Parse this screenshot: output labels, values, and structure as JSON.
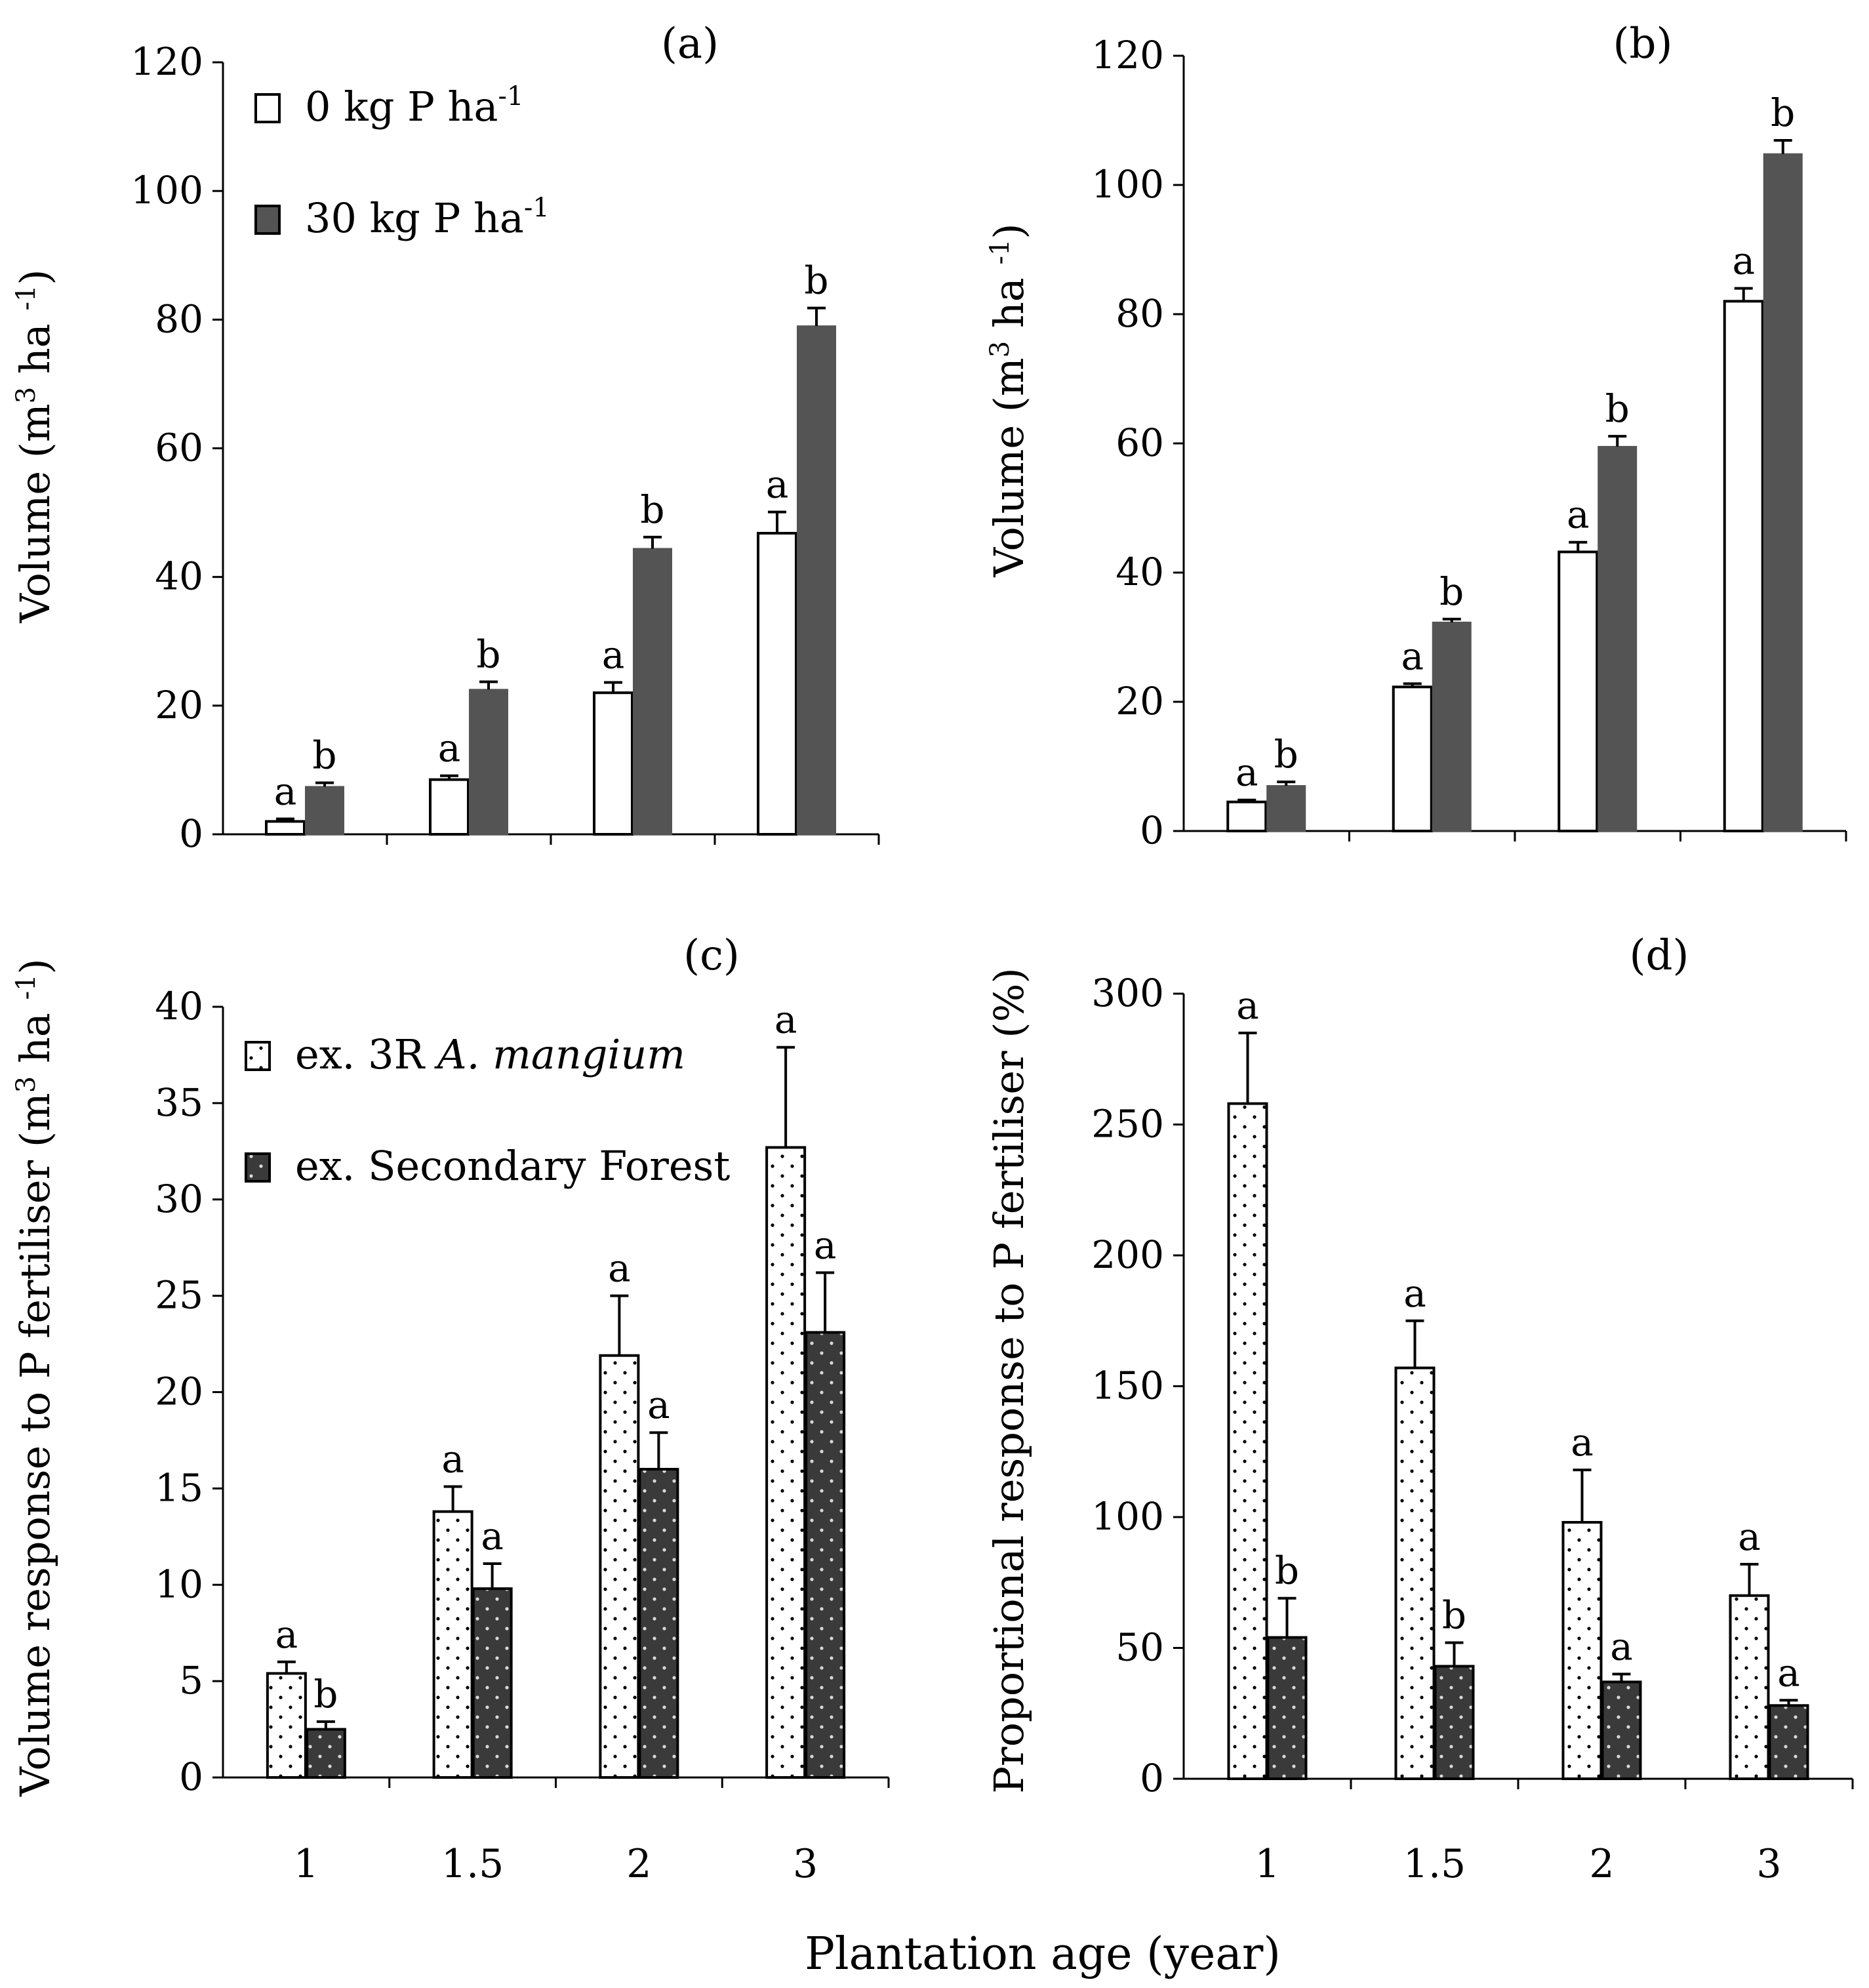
{
  "figure": {
    "shared_xlabel": "Plantation age (year)",
    "colors": {
      "control_fill": "#ffffff",
      "fertilised_fill": "#545454",
      "stroke": "#000000",
      "dotted_dark_fill": "#3a3a3a"
    }
  },
  "chart_data": [
    {
      "id": "a",
      "type": "bar",
      "panel_label": "(a)",
      "ylabel_main": "Volume (m",
      "ylabel_sup": "3",
      "ylabel_mid": " ha ",
      "ylabel_sup2": "-1",
      "ylabel_end": ")",
      "ylim": [
        0,
        120
      ],
      "yticks": [
        0,
        20,
        40,
        60,
        80,
        100,
        120
      ],
      "categories": [
        "1",
        "1.5",
        "2",
        "3"
      ],
      "show_category_labels": false,
      "legend": [
        {
          "main": "0 kg P ha",
          "sup": "-1"
        },
        {
          "main": "30 kg P ha",
          "sup": "-1"
        }
      ],
      "series": [
        {
          "name": "0 kg P ha-1",
          "style": "white",
          "values": [
            2.0,
            8.5,
            22.0,
            46.8
          ],
          "errors": [
            0.4,
            0.6,
            1.6,
            3.3
          ],
          "letters": [
            "a",
            "a",
            "a",
            "a"
          ]
        },
        {
          "name": "30 kg P ha-1",
          "style": "gray",
          "values": [
            7.4,
            22.5,
            44.4,
            79.0
          ],
          "errors": [
            0.6,
            1.2,
            1.8,
            2.8
          ],
          "letters": [
            "b",
            "b",
            "b",
            "b"
          ]
        }
      ]
    },
    {
      "id": "b",
      "type": "bar",
      "panel_label": "(b)",
      "ylabel_main": "Volume (m",
      "ylabel_sup": "3",
      "ylabel_mid": " ha ",
      "ylabel_sup2": "-1",
      "ylabel_end": ")",
      "ylim": [
        0,
        120
      ],
      "yticks": [
        0,
        20,
        40,
        60,
        80,
        100,
        120
      ],
      "categories": [
        "1",
        "1.5",
        "2",
        "3"
      ],
      "show_category_labels": false,
      "series": [
        {
          "name": "0 kg P ha-1",
          "style": "white",
          "values": [
            4.5,
            22.3,
            43.2,
            82.0
          ],
          "errors": [
            0.3,
            0.5,
            1.5,
            2.0
          ],
          "letters": [
            "a",
            "a",
            "a",
            "a"
          ]
        },
        {
          "name": "30 kg P ha-1",
          "style": "gray",
          "values": [
            7.0,
            32.3,
            59.5,
            104.8
          ],
          "errors": [
            0.6,
            0.5,
            1.6,
            2.1
          ],
          "letters": [
            "b",
            "b",
            "b",
            "b"
          ]
        }
      ]
    },
    {
      "id": "c",
      "type": "bar",
      "panel_label": "(c)",
      "ylabel_main": "Volume response to P fertiliser (m",
      "ylabel_sup": "3",
      "ylabel_mid": " ha ",
      "ylabel_sup2": "-1",
      "ylabel_end": ")",
      "ylim": [
        0,
        40
      ],
      "yticks": [
        0,
        5,
        10,
        15,
        20,
        25,
        30,
        35,
        40
      ],
      "categories": [
        "1",
        "1.5",
        "2",
        "3"
      ],
      "show_category_labels": true,
      "legend": [
        {
          "main": "ex. 3R ",
          "italic": "A. mangium"
        },
        {
          "main": "ex. Secondary Forest"
        }
      ],
      "series": [
        {
          "name": "ex. 3R A. mangium",
          "style": "dotted-white",
          "values": [
            5.4,
            13.8,
            21.9,
            32.7
          ],
          "errors": [
            0.6,
            1.3,
            3.1,
            5.2
          ],
          "letters": [
            "a",
            "a",
            "a",
            "a"
          ]
        },
        {
          "name": "ex. Secondary Forest",
          "style": "dotted-dark",
          "values": [
            2.5,
            9.8,
            16.0,
            23.1
          ],
          "errors": [
            0.4,
            1.3,
            1.9,
            3.1
          ],
          "letters": [
            "b",
            "a",
            "a",
            "a"
          ]
        }
      ]
    },
    {
      "id": "d",
      "type": "bar",
      "panel_label": "(d)",
      "ylabel_main": "Proportional response to P fertiliser (%)",
      "ylim": [
        0,
        300
      ],
      "yticks": [
        0,
        50,
        100,
        150,
        200,
        250,
        300
      ],
      "categories": [
        "1",
        "1.5",
        "2",
        "3"
      ],
      "show_category_labels": true,
      "series": [
        {
          "name": "ex. 3R A. mangium",
          "style": "dotted-white",
          "values": [
            258,
            157,
            98,
            70
          ],
          "errors": [
            27,
            18,
            20,
            12
          ],
          "letters": [
            "a",
            "a",
            "a",
            "a"
          ]
        },
        {
          "name": "ex. Secondary Forest",
          "style": "dotted-dark",
          "values": [
            54,
            43,
            37,
            28
          ],
          "errors": [
            15,
            9,
            3,
            2
          ],
          "letters": [
            "b",
            "b",
            "a",
            "a"
          ]
        }
      ]
    }
  ]
}
